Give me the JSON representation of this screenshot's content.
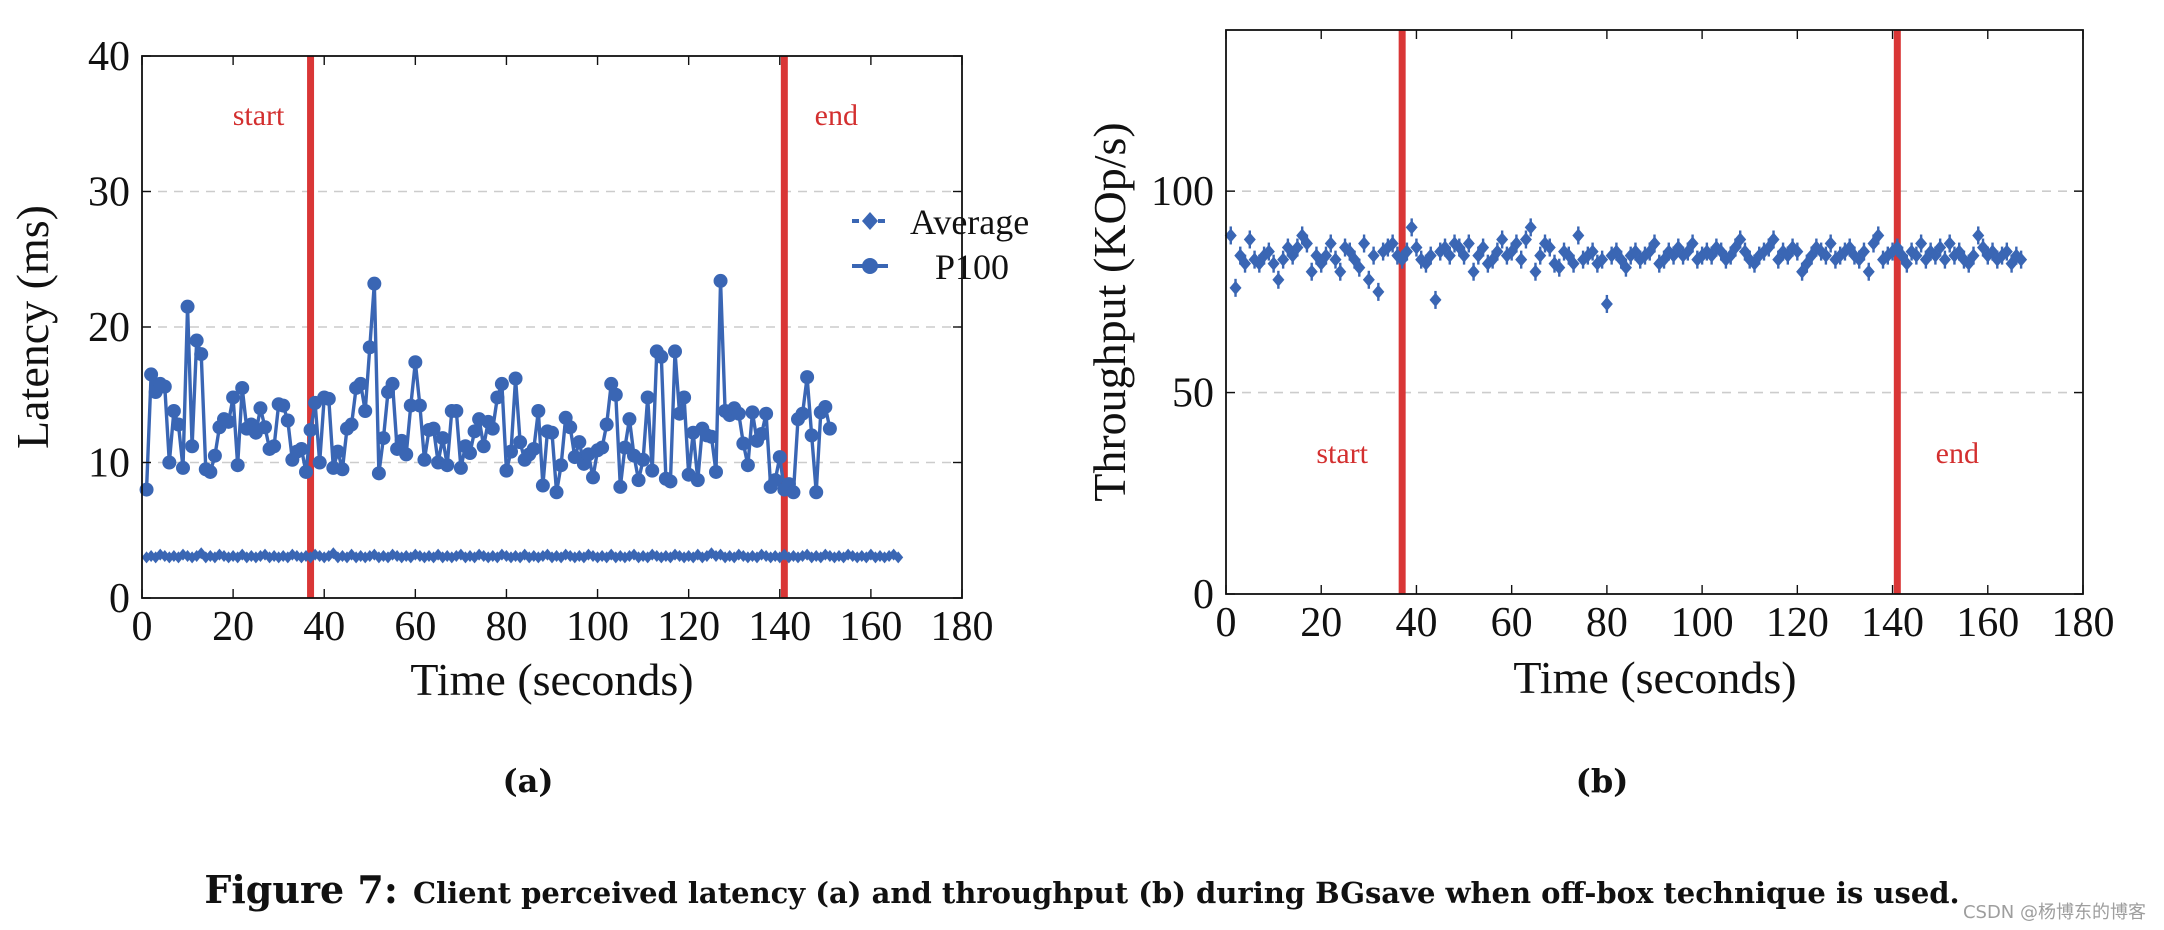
{
  "colors": {
    "series": "#3a66b4",
    "marker_line": "#d93636",
    "grid": "#cccccc",
    "axis": "#111111",
    "text": "#111111"
  },
  "chart_data": [
    {
      "id": "a",
      "type": "line",
      "sublabel": "(a)",
      "xlabel": "Time (seconds)",
      "ylabel": "Latency (ms)",
      "xlim": [
        0,
        180
      ],
      "ylim": [
        0,
        40
      ],
      "xticks": [
        0,
        20,
        40,
        60,
        80,
        100,
        120,
        140,
        160,
        180
      ],
      "yticks": [
        0,
        10,
        20,
        30,
        40
      ],
      "grid_y": [
        10,
        20,
        30
      ],
      "legend": {
        "position": "right-middle",
        "entries": [
          "Average",
          "P100"
        ]
      },
      "vlines": [
        {
          "x": 37,
          "label": "start",
          "label_side": "left"
        },
        {
          "x": 141,
          "label": "end",
          "label_side": "right"
        }
      ],
      "series": [
        {
          "name": "P100",
          "style": "solid-circle",
          "x_start": 1,
          "x_step": 1,
          "values": [
            8.0,
            16.5,
            15.2,
            15.8,
            15.6,
            10.0,
            13.8,
            12.8,
            9.6,
            21.5,
            11.2,
            19.0,
            18.0,
            9.5,
            9.3,
            10.5,
            12.6,
            13.2,
            13.0,
            14.8,
            9.8,
            15.5,
            12.5,
            12.8,
            12.2,
            14.0,
            12.6,
            11.0,
            11.2,
            14.3,
            14.2,
            13.1,
            10.2,
            10.8,
            11.0,
            9.3,
            12.4,
            14.4,
            10.0,
            14.8,
            14.7,
            9.6,
            10.8,
            9.5,
            12.5,
            12.8,
            15.5,
            15.8,
            13.8,
            18.5,
            23.2,
            9.2,
            11.8,
            15.2,
            15.8,
            11.0,
            11.6,
            10.6,
            14.2,
            17.4,
            14.2,
            10.2,
            12.4,
            12.5,
            10.0,
            11.8,
            9.8,
            13.8,
            13.8,
            9.6,
            11.2,
            10.7,
            12.3,
            13.2,
            11.2,
            13.0,
            12.5,
            14.8,
            15.8,
            9.4,
            10.8,
            16.2,
            11.5,
            10.2,
            10.6,
            11.0,
            13.8,
            8.3,
            12.3,
            12.2,
            7.8,
            9.8,
            13.3,
            12.6,
            10.4,
            11.5,
            9.9,
            10.6,
            8.9,
            10.9,
            11.1,
            12.8,
            15.8,
            15.0,
            8.2,
            11.1,
            13.2,
            10.5,
            8.7,
            10.2,
            14.8,
            9.4,
            18.2,
            17.8,
            8.8,
            8.6,
            18.2,
            13.6,
            14.8,
            9.1,
            12.2,
            8.7,
            12.5,
            12.0,
            11.9,
            9.3,
            23.4,
            13.8,
            13.5,
            14.0,
            13.6,
            11.4,
            9.8,
            13.7,
            11.6,
            12.1,
            13.6,
            8.2,
            8.7,
            10.4,
            8.0,
            8.4,
            7.8,
            13.2,
            13.6,
            16.3,
            12.0,
            7.8,
            13.7,
            14.1,
            12.5
          ]
        },
        {
          "name": "Average",
          "style": "dashed-diamond",
          "x_start": 1,
          "x_step": 1,
          "values": [
            3.0,
            3.1,
            3.0,
            3.2,
            3.1,
            3.0,
            3.1,
            3.0,
            3.2,
            3.1,
            3.0,
            3.1,
            3.3,
            3.0,
            3.1,
            3.0,
            3.2,
            3.1,
            3.0,
            3.1,
            3.0,
            3.2,
            3.0,
            3.1,
            3.0,
            3.1,
            3.2,
            3.0,
            3.1,
            3.0,
            3.1,
            3.0,
            3.2,
            3.1,
            3.0,
            3.1,
            3.0,
            3.2,
            3.1,
            3.0,
            3.1,
            3.3,
            3.0,
            3.1,
            3.0,
            3.2,
            3.0,
            3.1,
            3.0,
            3.1,
            3.2,
            3.0,
            3.1,
            3.0,
            3.2,
            3.1,
            3.0,
            3.1,
            3.0,
            3.2,
            3.1,
            3.0,
            3.1,
            3.0,
            3.2,
            3.0,
            3.1,
            3.0,
            3.1,
            3.2,
            3.0,
            3.1,
            3.0,
            3.2,
            3.1,
            3.0,
            3.1,
            3.0,
            3.2,
            3.1,
            3.0,
            3.1,
            3.0,
            3.2,
            3.0,
            3.1,
            3.0,
            3.1,
            3.2,
            3.0,
            3.1,
            3.0,
            3.2,
            3.1,
            3.0,
            3.1,
            3.0,
            3.2,
            3.1,
            3.0,
            3.1,
            3.0,
            3.2,
            3.0,
            3.1,
            3.0,
            3.1,
            3.2,
            3.0,
            3.1,
            3.0,
            3.2,
            3.1,
            3.0,
            3.1,
            3.0,
            3.2,
            3.1,
            3.0,
            3.1,
            3.0,
            3.2,
            3.0,
            3.1,
            3.3,
            3.1,
            3.2,
            3.0,
            3.1,
            3.0,
            3.2,
            3.1,
            3.0,
            3.1,
            3.0,
            3.2,
            3.1,
            3.0,
            3.1,
            3.0,
            3.2,
            3.0,
            3.1,
            3.0,
            3.1,
            3.2,
            3.0,
            3.1,
            3.0,
            3.2,
            3.1,
            3.0,
            3.1,
            3.0,
            3.2,
            3.1,
            3.0,
            3.1,
            3.0,
            3.2,
            3.0,
            3.1,
            3.0,
            3.1,
            3.2,
            3.0
          ]
        }
      ]
    },
    {
      "id": "b",
      "type": "scatter",
      "sublabel": "(b)",
      "xlabel": "Time (seconds)",
      "ylabel": "Throughput (KOp/s)",
      "xlim": [
        0,
        180
      ],
      "ylim": [
        0,
        140
      ],
      "xticks": [
        0,
        20,
        40,
        60,
        80,
        100,
        120,
        140,
        160,
        180
      ],
      "yticks": [
        0,
        50,
        100
      ],
      "grid_y": [
        50,
        100
      ],
      "vlines": [
        {
          "x": 37,
          "label": "start",
          "label_side": "left"
        },
        {
          "x": 141,
          "label": "end",
          "label_side": "right"
        }
      ],
      "series": [
        {
          "name": "Throughput",
          "style": "diamond-errorbar",
          "x_start": 1,
          "x_step": 1,
          "values": [
            89,
            76,
            84,
            82,
            88,
            83,
            82,
            84,
            85,
            82,
            78,
            83,
            86,
            84,
            86,
            89,
            87,
            80,
            84,
            82,
            84,
            87,
            83,
            80,
            86,
            85,
            83,
            81,
            87,
            78,
            84,
            75,
            85,
            86,
            87,
            84,
            83,
            85,
            91,
            86,
            83,
            82,
            84,
            73,
            85,
            86,
            84,
            87,
            86,
            84,
            87,
            80,
            84,
            86,
            82,
            83,
            85,
            88,
            84,
            85,
            87,
            83,
            88,
            91,
            80,
            84,
            87,
            86,
            82,
            81,
            85,
            84,
            82,
            89,
            83,
            84,
            85,
            82,
            83,
            72,
            84,
            85,
            83,
            81,
            84,
            85,
            83,
            84,
            85,
            87,
            82,
            83,
            85,
            84,
            86,
            84,
            85,
            87,
            83,
            84,
            85,
            84,
            86,
            85,
            83,
            84,
            86,
            88,
            85,
            83,
            82,
            84,
            85,
            86,
            88,
            83,
            85,
            84,
            86,
            85,
            80,
            82,
            84,
            86,
            85,
            84,
            87,
            83,
            84,
            85,
            86,
            84,
            83,
            85,
            80,
            87,
            89,
            83,
            84,
            85,
            86,
            84,
            82,
            85,
            84,
            87,
            83,
            85,
            84,
            86,
            83,
            87,
            84,
            85,
            83,
            82,
            84,
            89,
            86,
            84,
            85,
            83,
            84,
            85,
            82,
            84,
            83
          ]
        }
      ]
    }
  ],
  "caption": {
    "figure_label": "Figure 7:",
    "text": "Client perceived latency (a) and throughput (b) during BGsave when off-box technique is used."
  },
  "watermark": "CSDN @杨博东的博客"
}
